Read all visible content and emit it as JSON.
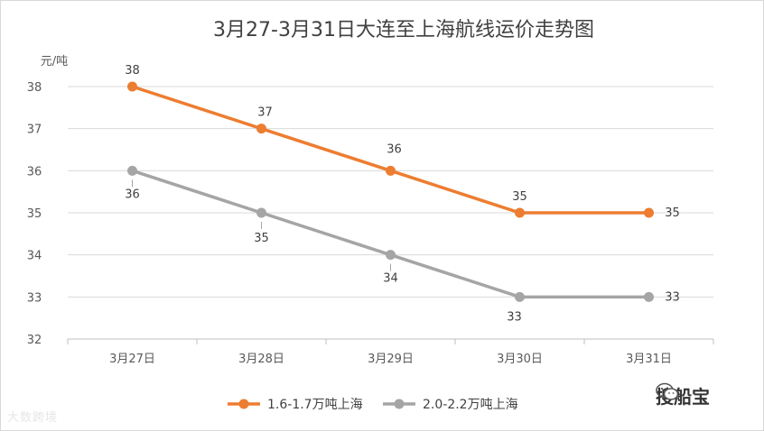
{
  "chart_data": {
    "type": "line",
    "title": "3月27-3月31日大连至上海航线运价走势图",
    "ylabel": "元/吨",
    "ylim": [
      32,
      38
    ],
    "yticks": [
      32,
      33,
      34,
      35,
      36,
      37,
      38
    ],
    "categories": [
      "3月27日",
      "3月28日",
      "3月29日",
      "3月30日",
      "3月31日"
    ],
    "grid": true,
    "legend_position": "bottom",
    "series": [
      {
        "name": "1.6-1.7万吨上海",
        "color": "#ed7d31",
        "values": [
          38,
          37,
          36,
          35,
          35
        ]
      },
      {
        "name": "2.0-2.2万吨上海",
        "color": "#a5a5a5",
        "values": [
          36,
          35,
          34,
          33,
          33
        ]
      }
    ]
  },
  "watermark": {
    "left_text": "大数跨境",
    "right_text": "搜船宝"
  }
}
